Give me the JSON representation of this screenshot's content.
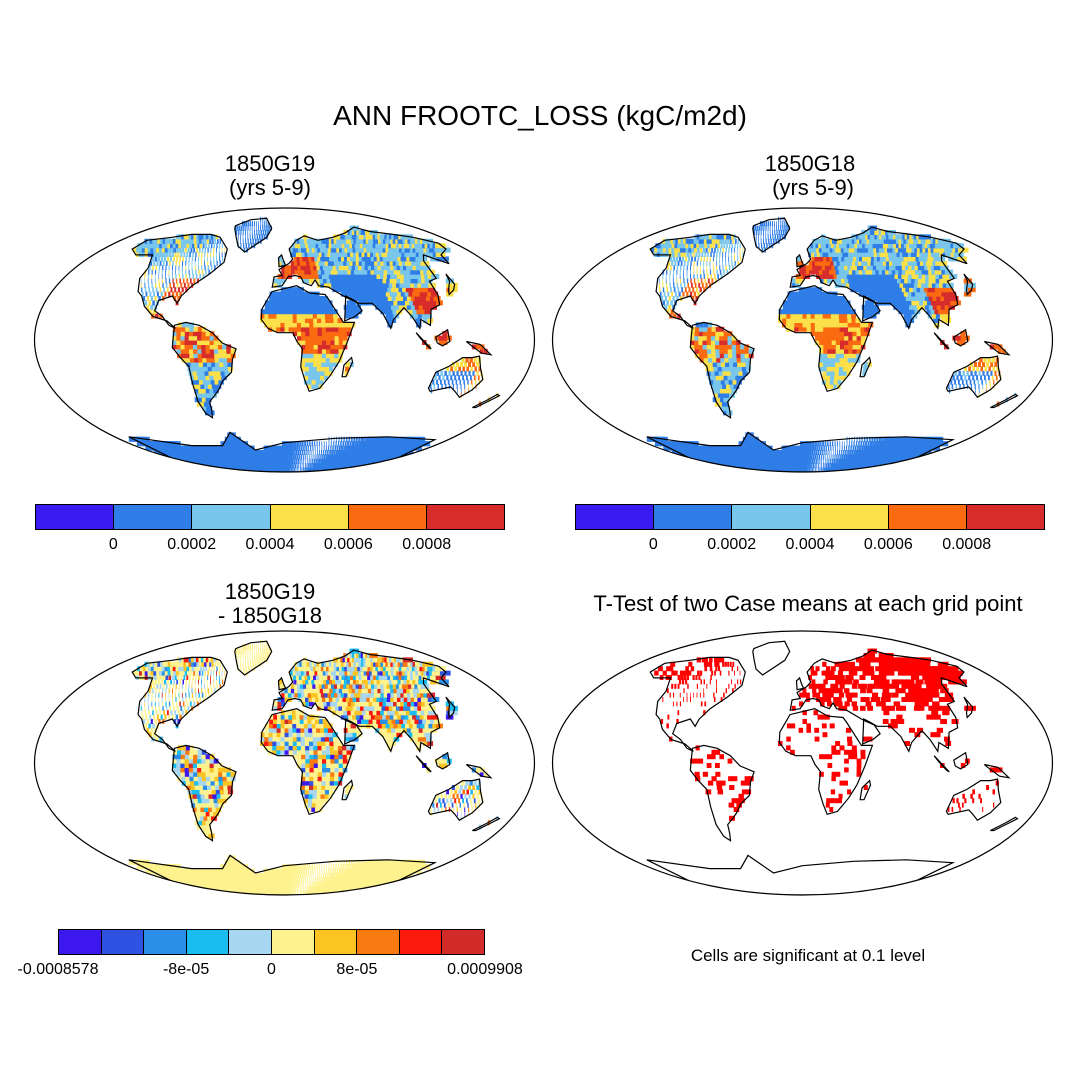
{
  "title": "ANN FROOTC_LOSS (kgC/m2d)",
  "panels": [
    {
      "id": "p1",
      "line1": "1850G19",
      "line2": "(yrs 5-9)",
      "kind": "mean",
      "seed": 11
    },
    {
      "id": "p2",
      "line1": "1850G18",
      "line2": " (yrs 5-9)",
      "kind": "mean",
      "seed": 23
    },
    {
      "id": "p3",
      "line1": "1850G19",
      "line2": "- 1850G18",
      "kind": "diff",
      "seed": 37
    },
    {
      "id": "p4",
      "line1": "T-Test of two Case means at each grid point",
      "line2": "",
      "kind": "ttest",
      "seed": 51
    }
  ],
  "colorbars": {
    "mean": {
      "colors": [
        "#3a1cf2",
        "#2f7de6",
        "#79c6ec",
        "#fbe04a",
        "#fa6a10",
        "#d72c2c"
      ],
      "labels": [
        "0",
        "0.0002",
        "0.0004",
        "0.0006",
        "0.0008"
      ]
    },
    "diff": {
      "colors": [
        "#3c17ee",
        "#2f52e3",
        "#2b8ee8",
        "#1bbcf0",
        "#a6d6f0",
        "#fdf28e",
        "#fbc423",
        "#fa7a12",
        "#fb1a0d",
        "#d32a2a"
      ],
      "labels": [
        "-0.0008578",
        "-8e-05",
        "0",
        "8e-05",
        "0.0009908"
      ]
    }
  },
  "ttest_colors": {
    "significant": "#ff0000"
  },
  "note": "Cells are significant at 0.1 level"
}
